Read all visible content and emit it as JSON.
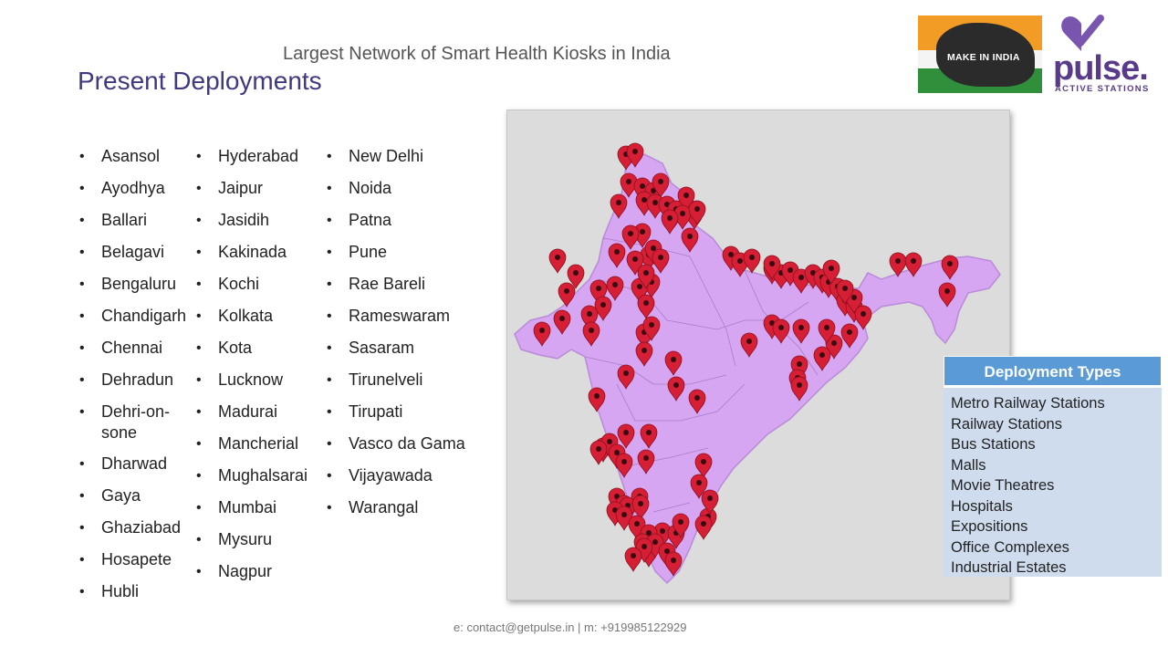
{
  "header": {
    "subtitle": "Largest Network of Smart Health Kiosks in India",
    "title": "Present Deployments"
  },
  "logos": {
    "make_in_india": "MAKE IN INDIA",
    "pulse_brand": "pulse.",
    "pulse_tagline": "ACTIVE STATIONS"
  },
  "cities": {
    "col1": [
      "Asansol",
      "Ayodhya",
      "Ballari",
      "Belagavi",
      "Bengaluru",
      "Chandigarh",
      "Chennai",
      "Dehradun",
      "Dehri-on-\nsone",
      "Dharwad",
      "Gaya",
      "Ghaziabad",
      "Hosapete",
      "Hubli"
    ],
    "col2": [
      "Hyderabad",
      "Jaipur",
      "Jasidih",
      "Kakinada",
      "Kochi",
      "Kolkata",
      "Kota",
      "Lucknow",
      "Madurai",
      "Mancherial",
      "Mughalsarai",
      "Mumbai",
      "Mysuru",
      "Nagpur"
    ],
    "col3": [
      "New Delhi",
      "Noida",
      "Patna",
      "Pune",
      "Rae Bareli",
      "Rameswaram",
      "Sasaram",
      "Tirunelveli",
      "Tirupati",
      "Vasco da Gama",
      "Vijayawada",
      "Warangal"
    ]
  },
  "deployment_types": {
    "title": "Deployment Types",
    "items": [
      "Metro Railway Stations",
      "Railway Stations",
      "Bus Stations",
      "Malls",
      "Movie Theatres",
      "Hospitals",
      "Expositions",
      "Office Complexes",
      "Industrial Estates"
    ]
  },
  "colors": {
    "title": "#3f3a80",
    "map_fill": "#d6a6f2",
    "map_bg": "#dcdcdc",
    "pin": "#d61f35",
    "table_header": "#5b9bd5",
    "table_body": "#cfdcee"
  },
  "footer": {
    "contact": "e: contact@getpulse.in | m: +919985122929"
  }
}
